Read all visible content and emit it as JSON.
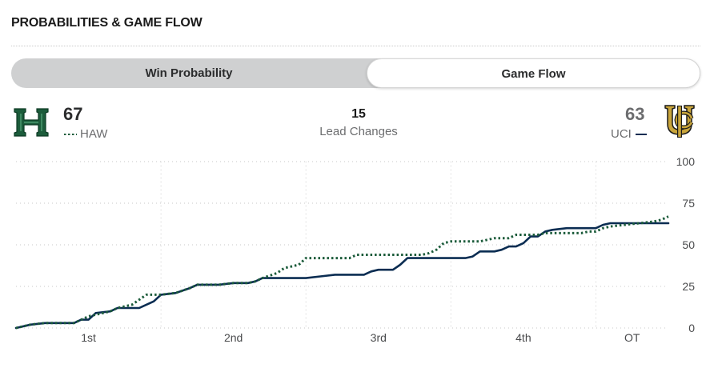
{
  "section": {
    "title": "PROBABILITIES & GAME FLOW"
  },
  "toggle": {
    "left_label": "Win Probability",
    "right_label": "Game Flow"
  },
  "teams": {
    "home": {
      "score": "67",
      "abbr": "HAW",
      "color": "#1c5c3b"
    },
    "away": {
      "score": "63",
      "abbr": "UCI",
      "color": "#0b2d52"
    }
  },
  "lead_changes": {
    "value": "15",
    "label": "Lead Changes"
  },
  "colors": {
    "grid": "#c9c9c9",
    "haw_line": "#1c5c3b",
    "uci_line": "#0b2d52",
    "uci_accent": "#c9a53b"
  },
  "chart_data": {
    "type": "line",
    "title": "",
    "xlabel": "",
    "ylabel": "",
    "ylim": [
      0,
      100
    ],
    "yticks": [
      "0",
      "25",
      "50",
      "75",
      "100"
    ],
    "xlim": [
      0,
      45
    ],
    "periods": [
      {
        "label": "1st",
        "start": 0,
        "end": 10
      },
      {
        "label": "2nd",
        "start": 10,
        "end": 20
      },
      {
        "label": "3rd",
        "start": 20,
        "end": 30
      },
      {
        "label": "4th",
        "start": 30,
        "end": 40
      },
      {
        "label": "OT",
        "start": 40,
        "end": 45
      }
    ],
    "grid": true,
    "series": [
      {
        "name": "HAW",
        "style": "dotted",
        "points": [
          [
            0,
            0
          ],
          [
            1,
            2
          ],
          [
            2,
            3
          ],
          [
            4,
            3
          ],
          [
            4.5,
            5
          ],
          [
            5,
            7
          ],
          [
            6,
            9
          ],
          [
            6.5,
            10
          ],
          [
            7,
            12
          ],
          [
            8,
            14
          ],
          [
            8.5,
            17
          ],
          [
            9,
            20
          ],
          [
            10,
            20
          ],
          [
            11,
            21
          ],
          [
            12,
            24
          ],
          [
            12.5,
            26
          ],
          [
            14,
            26
          ],
          [
            15,
            27
          ],
          [
            16,
            27
          ],
          [
            16.5,
            28
          ],
          [
            17,
            30
          ],
          [
            18,
            33
          ],
          [
            18.5,
            36
          ],
          [
            19.5,
            38
          ],
          [
            20,
            42
          ],
          [
            21,
            42
          ],
          [
            22,
            42
          ],
          [
            23,
            42
          ],
          [
            23.5,
            44
          ],
          [
            24,
            44
          ],
          [
            26,
            44
          ],
          [
            27,
            44
          ],
          [
            28,
            44
          ],
          [
            28.5,
            45
          ],
          [
            29,
            47
          ],
          [
            29.5,
            51
          ],
          [
            30,
            52
          ],
          [
            31,
            52
          ],
          [
            32,
            52
          ],
          [
            32.5,
            53
          ],
          [
            33,
            54
          ],
          [
            34,
            54
          ],
          [
            34.5,
            56
          ],
          [
            36,
            56
          ],
          [
            36.5,
            57
          ],
          [
            38,
            57
          ],
          [
            39,
            57
          ],
          [
            39.5,
            58
          ],
          [
            40,
            58
          ],
          [
            40.5,
            60
          ],
          [
            41,
            61
          ],
          [
            42,
            62
          ],
          [
            43,
            63
          ],
          [
            44,
            64
          ],
          [
            44.5,
            65
          ],
          [
            45,
            67
          ]
        ]
      },
      {
        "name": "UCI",
        "style": "solid",
        "points": [
          [
            0,
            0
          ],
          [
            1,
            2
          ],
          [
            2,
            3
          ],
          [
            4,
            3
          ],
          [
            4.5,
            5
          ],
          [
            5,
            5
          ],
          [
            5.5,
            9
          ],
          [
            6.5,
            10
          ],
          [
            7,
            12
          ],
          [
            8.5,
            12
          ],
          [
            9.5,
            16
          ],
          [
            10,
            20
          ],
          [
            11,
            21
          ],
          [
            12,
            24
          ],
          [
            12.5,
            26
          ],
          [
            14,
            26
          ],
          [
            15,
            27
          ],
          [
            16,
            27
          ],
          [
            16.5,
            28
          ],
          [
            17,
            30
          ],
          [
            20,
            30
          ],
          [
            21,
            31
          ],
          [
            22,
            32
          ],
          [
            24,
            32
          ],
          [
            24.5,
            34
          ],
          [
            25,
            35
          ],
          [
            26,
            35
          ],
          [
            26.5,
            38
          ],
          [
            27,
            42
          ],
          [
            28,
            42
          ],
          [
            29,
            42
          ],
          [
            30,
            42
          ],
          [
            31,
            42
          ],
          [
            31.5,
            43
          ],
          [
            32,
            46
          ],
          [
            33,
            46
          ],
          [
            33.5,
            47
          ],
          [
            34,
            49
          ],
          [
            34.5,
            49
          ],
          [
            35,
            51
          ],
          [
            35.5,
            55
          ],
          [
            36,
            55
          ],
          [
            36.5,
            58
          ],
          [
            37,
            59
          ],
          [
            38,
            60
          ],
          [
            39,
            60
          ],
          [
            40,
            60
          ],
          [
            40.5,
            62
          ],
          [
            41,
            63
          ],
          [
            42,
            63
          ],
          [
            43,
            63
          ],
          [
            44,
            63
          ],
          [
            45,
            63
          ]
        ]
      }
    ]
  }
}
